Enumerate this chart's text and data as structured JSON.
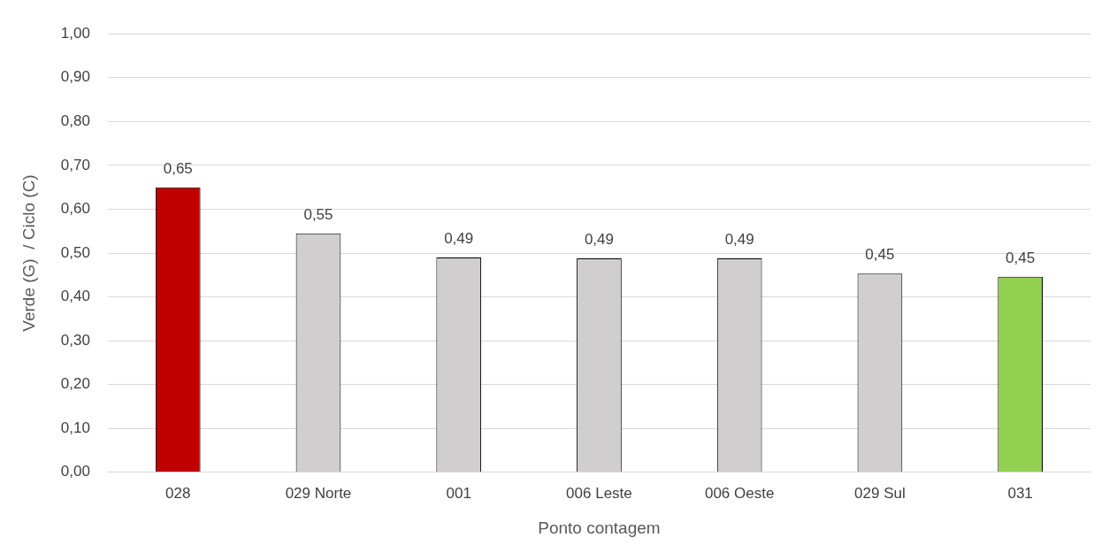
{
  "chart_data": {
    "type": "bar",
    "xlabel": "Ponto contagem",
    "ylabel": "Verde (G)  / Ciclo (C)",
    "categories": [
      "028",
      "029 Norte",
      "001",
      "006 Leste",
      "006 Oeste",
      "029 Sul",
      "031"
    ],
    "values": [
      0.65,
      0.545,
      0.49,
      0.488,
      0.488,
      0.453,
      0.446
    ],
    "colors": [
      "#c00000",
      "#d0cece",
      "#d0cece",
      "#d0cece",
      "#d0cece",
      "#d0cece",
      "#92d050"
    ],
    "value_labels": [
      "0,65",
      "0,55",
      "0,49",
      "0,49",
      "0,49",
      "0,45",
      "0,45"
    ],
    "ylim": [
      0,
      1
    ],
    "yticks": [
      {
        "value": 0,
        "label": "0,00"
      },
      {
        "value": 0.1,
        "label": "0,10"
      },
      {
        "value": 0.2,
        "label": "0,20"
      },
      {
        "value": 0.3,
        "label": "0,30"
      },
      {
        "value": 0.4,
        "label": "0,40"
      },
      {
        "value": 0.5,
        "label": "0,50"
      },
      {
        "value": 0.6,
        "label": "0,60"
      },
      {
        "value": 0.7,
        "label": "0,70"
      },
      {
        "value": 0.8,
        "label": "0,80"
      },
      {
        "value": 0.9,
        "label": "0,90"
      },
      {
        "value": 1,
        "label": "1,00"
      }
    ],
    "grid": "y",
    "legend": false
  }
}
